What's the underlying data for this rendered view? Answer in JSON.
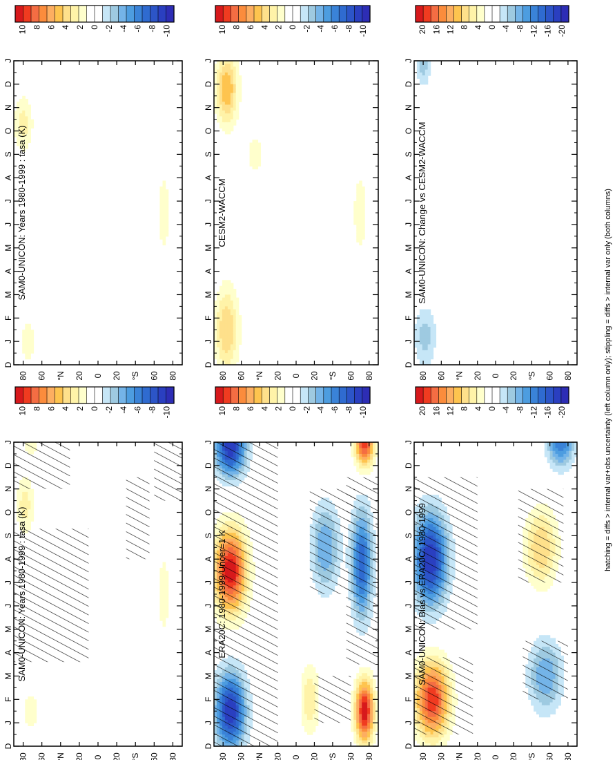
{
  "footnote": "hatching = diffs > internal var+obs uncertainty (left column only); stippling = diffs > internal var only (both columns)",
  "chart_data": [
    {
      "type": "heatmap",
      "title": "SAM0-UNICON: Years 1980-1999 : tasa (K)",
      "months": [
        "D",
        "J",
        "F",
        "M",
        "A",
        "M",
        "J",
        "J",
        "A",
        "S",
        "O",
        "N",
        "D",
        "J"
      ],
      "lat_ticks": [
        "80",
        "60",
        "°N",
        "20",
        "0",
        "20",
        "°S",
        "60",
        "80"
      ],
      "colorbar": {
        "labels": [
          "10",
          "8",
          "6",
          "4",
          "2",
          "0",
          "-2",
          "-4",
          "-6",
          "-8",
          "-10"
        ],
        "colors": [
          "#d7191c",
          "#f03b20",
          "#f46d43",
          "#fb8c3c",
          "#fdae61",
          "#fec44f",
          "#fee08b",
          "#fff3a8",
          "#ffffcc",
          "#ffffff",
          "#ffffff",
          "#c6e6f7",
          "#9ecae1",
          "#74b4e8",
          "#4d9de0",
          "#3a83d8",
          "#2f6bd0",
          "#2c55c8",
          "#2a3fc0",
          "#2d2db5"
        ]
      },
      "fields": [
        {
          "name": "arctic-warm",
          "lat": 78,
          "month": 10.3,
          "value": 2.5,
          "slat": 10,
          "smon": 1.2
        },
        {
          "name": "arctic-warm-2",
          "lat": 72,
          "month": 1.5,
          "value": 1.5,
          "slat": 10,
          "smon": 1.0
        },
        {
          "name": "arctic-warm-3",
          "lat": 72,
          "month": 13,
          "value": 1.5,
          "slat": 10,
          "smon": 0.8
        },
        {
          "name": "antarctic-warm",
          "lat": -70,
          "month": 6.5,
          "value": 2.0,
          "slat": 6,
          "smon": 1.6
        }
      ],
      "hatch": [
        {
          "lat": [
            10,
            90
          ],
          "month": [
            3.6,
            9.3
          ]
        },
        {
          "lat": [
            30,
            90
          ],
          "month": [
            11.0,
            14.0
          ]
        },
        {
          "lat": [
            -55,
            -30
          ],
          "month": [
            8.0,
            11.5
          ]
        },
        {
          "lat": [
            -90,
            -60
          ],
          "month": [
            10.5,
            14.0
          ]
        }
      ]
    },
    {
      "type": "heatmap",
      "title": "SAM0-UNICON: Years 1980-1999 : tasa (K)",
      "months": [
        "D",
        "J",
        "F",
        "M",
        "A",
        "M",
        "J",
        "J",
        "A",
        "S",
        "O",
        "N",
        "D",
        "J"
      ],
      "lat_ticks": [
        "80",
        "60",
        "°N",
        "20",
        "0",
        "20",
        "°S",
        "60",
        "80"
      ],
      "colorbar": {
        "labels": [
          "10",
          "8",
          "6",
          "4",
          "2",
          "0",
          "-2",
          "-4",
          "-6",
          "-8",
          "-10"
        ],
        "colors": [
          "#d7191c",
          "#f03b20",
          "#f46d43",
          "#fb8c3c",
          "#fdae61",
          "#fec44f",
          "#fee08b",
          "#fff3a8",
          "#ffffcc",
          "#ffffff",
          "#ffffff",
          "#c6e6f7",
          "#9ecae1",
          "#74b4e8",
          "#4d9de0",
          "#3a83d8",
          "#2f6bd0",
          "#2c55c8",
          "#2a3fc0",
          "#2d2db5"
        ]
      },
      "fields": [
        {
          "name": "arctic-warm",
          "lat": 80,
          "month": 10.3,
          "value": 2.5,
          "slat": 10,
          "smon": 1.2
        },
        {
          "name": "arctic-warm-2",
          "lat": 75,
          "month": 1.0,
          "value": 1.5,
          "slat": 10,
          "smon": 1.2
        },
        {
          "name": "antarctic-warm",
          "lat": -70,
          "month": 6.5,
          "value": 2.0,
          "slat": 6,
          "smon": 1.6
        }
      ],
      "hatch": []
    },
    {
      "type": "heatmap",
      "title": "ERA20C: 1980-1999 Uncer=1 K",
      "months": [
        "D",
        "J",
        "F",
        "M",
        "A",
        "M",
        "J",
        "J",
        "A",
        "S",
        "O",
        "N",
        "D",
        "J"
      ],
      "lat_ticks": [
        "80",
        "60",
        "°N",
        "20",
        "0",
        "20",
        "°S",
        "60",
        "80"
      ],
      "colorbar": {
        "labels": [
          "10",
          "8",
          "6",
          "4",
          "2",
          "0",
          "-2",
          "-4",
          "-6",
          "-8",
          "-10"
        ],
        "colors": [
          "#d7191c",
          "#f03b20",
          "#f46d43",
          "#fb8c3c",
          "#fdae61",
          "#fec44f",
          "#fee08b",
          "#fff3a8",
          "#ffffcc",
          "#ffffff",
          "#ffffff",
          "#c6e6f7",
          "#9ecae1",
          "#74b4e8",
          "#4d9de0",
          "#3a83d8",
          "#2f6bd0",
          "#2c55c8",
          "#2a3fc0",
          "#2d2db5"
        ]
      },
      "fields": [
        {
          "name": "arctic-cold-winter",
          "lat": 72,
          "month": 1.5,
          "value": -9,
          "slat": 16,
          "smon": 1.6
        },
        {
          "name": "arctic-cold-late",
          "lat": 72,
          "month": 12.8,
          "value": -9,
          "slat": 16,
          "smon": 1.2
        },
        {
          "name": "arctic-warm-summer",
          "lat": 72,
          "month": 7.5,
          "value": 10,
          "slat": 17,
          "smon": 1.7
        },
        {
          "name": "tropics-warm",
          "lat": -15,
          "month": 2.0,
          "value": 3,
          "slat": 10,
          "smon": 1.5
        },
        {
          "name": "southern-cold",
          "lat": -32,
          "month": 8.5,
          "value": -4,
          "slat": 15,
          "smon": 1.8
        },
        {
          "name": "antarctic-warm-summer",
          "lat": -75,
          "month": 1.5,
          "value": 10,
          "slat": 10,
          "smon": 1.3
        },
        {
          "name": "antarctic-warm-late",
          "lat": -75,
          "month": 13.0,
          "value": 9,
          "slat": 10,
          "smon": 1.0
        },
        {
          "name": "antarctic-cold-winter",
          "lat": -72,
          "month": 7.8,
          "value": -7,
          "slat": 11,
          "smon": 2.2
        }
      ],
      "hatch": [
        {
          "lat": [
            20,
            90
          ],
          "month": [
            0,
            14
          ]
        },
        {
          "lat": [
            -65,
            -15
          ],
          "month": [
            6.5,
            11.0
          ]
        },
        {
          "lat": [
            -90,
            -55
          ],
          "month": [
            3.5,
            11.5
          ]
        },
        {
          "lat": [
            -60,
            -20
          ],
          "month": [
            1.0,
            3.0
          ]
        }
      ]
    },
    {
      "type": "heatmap",
      "title": "CESM2-WACCM",
      "months": [
        "D",
        "J",
        "F",
        "M",
        "A",
        "M",
        "J",
        "J",
        "A",
        "S",
        "O",
        "N",
        "D",
        "J"
      ],
      "lat_ticks": [
        "80",
        "60",
        "°N",
        "20",
        "0",
        "20",
        "°S",
        "60",
        "80"
      ],
      "colorbar": {
        "labels": [
          "10",
          "8",
          "6",
          "4",
          "2",
          "0",
          "-2",
          "-4",
          "-6",
          "-8",
          "-10"
        ],
        "colors": [
          "#d7191c",
          "#f03b20",
          "#f46d43",
          "#fb8c3c",
          "#fdae61",
          "#fec44f",
          "#fee08b",
          "#fff3a8",
          "#ffffcc",
          "#ffffff",
          "#ffffff",
          "#c6e6f7",
          "#9ecae1",
          "#74b4e8",
          "#4d9de0",
          "#3a83d8",
          "#2f6bd0",
          "#2c55c8",
          "#2a3fc0",
          "#2d2db5"
        ]
      },
      "fields": [
        {
          "name": "arctic-warm-winter",
          "lat": 76,
          "month": 1.5,
          "value": 4,
          "slat": 13,
          "smon": 1.8
        },
        {
          "name": "arctic-warm-late",
          "lat": 76,
          "month": 11.8,
          "value": 5,
          "slat": 12,
          "smon": 1.5
        },
        {
          "name": "nh-warm",
          "lat": 45,
          "month": 9.0,
          "value": 1.5,
          "slat": 10,
          "smon": 1.0
        },
        {
          "name": "antarctic-warm",
          "lat": -70,
          "month": 6.5,
          "value": 2,
          "slat": 7,
          "smon": 1.7
        }
      ],
      "hatch": []
    },
    {
      "type": "heatmap",
      "title": "SAM0-UNICON: Bias vs ERA20C: 1980-1999",
      "months": [
        "D",
        "J",
        "F",
        "M",
        "A",
        "M",
        "J",
        "J",
        "A",
        "S",
        "O",
        "N",
        "D",
        "J"
      ],
      "lat_ticks": [
        "80",
        "60",
        "°N",
        "20",
        "0",
        "20",
        "°S",
        "60",
        "80"
      ],
      "colorbar": {
        "labels": [
          "20",
          "16",
          "12",
          "8",
          "4",
          "0",
          "-4",
          "-8",
          "-12",
          "-16",
          "-20"
        ],
        "colors": [
          "#d7191c",
          "#f03b20",
          "#f46d43",
          "#fb8c3c",
          "#fdae61",
          "#fec44f",
          "#fee08b",
          "#fff3a8",
          "#ffffcc",
          "#ffffff",
          "#ffffff",
          "#c6e6f7",
          "#9ecae1",
          "#74b4e8",
          "#4d9de0",
          "#3a83d8",
          "#2f6bd0",
          "#2c55c8",
          "#2a3fc0",
          "#2d2db5"
        ]
      },
      "fields": [
        {
          "name": "arctic-warm-winter",
          "lat": 70,
          "month": 2.0,
          "value": 18,
          "slat": 18,
          "smon": 1.6
        },
        {
          "name": "arctic-cold-summer",
          "lat": 72,
          "month": 8.0,
          "value": -18,
          "slat": 18,
          "smon": 1.9
        },
        {
          "name": "southern-cold",
          "lat": -55,
          "month": 3.0,
          "value": -8,
          "slat": 18,
          "smon": 1.5
        },
        {
          "name": "southern-warm",
          "lat": -50,
          "month": 8.5,
          "value": 8,
          "slat": 18,
          "smon": 1.6
        },
        {
          "name": "antarctic-cold",
          "lat": -72,
          "month": 13.0,
          "value": -12,
          "slat": 14,
          "smon": 1.0
        }
      ],
      "hatch": [
        {
          "lat": [
            25,
            90
          ],
          "month": [
            0.5,
            3.8
          ]
        },
        {
          "lat": [
            20,
            90
          ],
          "month": [
            5.0,
            11.5
          ]
        },
        {
          "lat": [
            -75,
            -25
          ],
          "month": [
            7.0,
            11.0
          ]
        },
        {
          "lat": [
            -80,
            -30
          ],
          "month": [
            2.0,
            4.5
          ]
        }
      ]
    },
    {
      "type": "heatmap",
      "title": "SAM0-UNICON: Change vs CESM2-WACCM",
      "months": [
        "D",
        "J",
        "F",
        "M",
        "A",
        "M",
        "J",
        "J",
        "A",
        "S",
        "O",
        "N",
        "D",
        "J"
      ],
      "lat_ticks": [
        "80",
        "60",
        "°N",
        "20",
        "0",
        "20",
        "°S",
        "60",
        "80"
      ],
      "colorbar": {
        "labels": [
          "20",
          "16",
          "12",
          "8",
          "4",
          "0",
          "-4",
          "-8",
          "-12",
          "-16",
          "-20"
        ],
        "colors": [
          "#d7191c",
          "#f03b20",
          "#f46d43",
          "#fb8c3c",
          "#fdae61",
          "#fec44f",
          "#fee08b",
          "#fff3a8",
          "#ffffcc",
          "#ffffff",
          "#ffffff",
          "#c6e6f7",
          "#9ecae1",
          "#74b4e8",
          "#4d9de0",
          "#3a83d8",
          "#2f6bd0",
          "#2c55c8",
          "#2a3fc0",
          "#2d2db5"
        ]
      },
      "fields": [
        {
          "name": "arctic-cold-early",
          "lat": 78,
          "month": 1.2,
          "value": -5,
          "slat": 12,
          "smon": 1.3
        },
        {
          "name": "arctic-cold-late",
          "lat": 80,
          "month": 12.8,
          "value": -5,
          "slat": 8,
          "smon": 0.9
        }
      ],
      "hatch": []
    }
  ]
}
